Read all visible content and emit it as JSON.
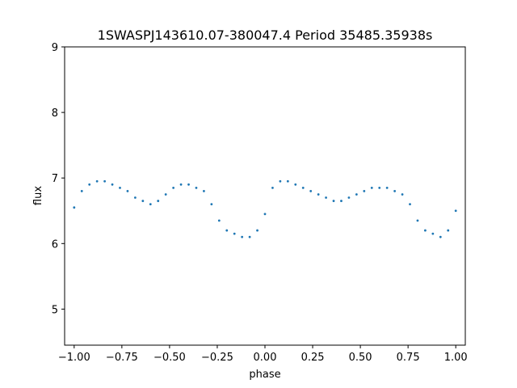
{
  "chart_data": {
    "type": "scatter",
    "title": "1SWASPJ143610.07-380047.4 Period 35485.35938s",
    "xlabel": "phase",
    "ylabel": "flux",
    "xlim": [
      -1.05,
      1.05
    ],
    "ylim": [
      4.45,
      9.0
    ],
    "xticks": [
      -1.0,
      -0.75,
      -0.5,
      -0.25,
      0.0,
      0.25,
      0.5,
      0.75,
      1.0
    ],
    "xtick_labels": [
      "−1.00",
      "−0.75",
      "−0.50",
      "−0.25",
      "0.00",
      "0.25",
      "0.50",
      "0.75",
      "1.00"
    ],
    "yticks": [
      5,
      6,
      7,
      8,
      9
    ],
    "ytick_labels": [
      "5",
      "6",
      "7",
      "8",
      "9"
    ],
    "grid": false,
    "legend": "none",
    "color": "#1f77b4",
    "series": [
      {
        "x": [
          -1.0,
          -0.96,
          -0.92,
          -0.88,
          -0.84,
          -0.8,
          -0.76,
          -0.72,
          -0.68,
          -0.64,
          -0.6,
          -0.56,
          -0.52,
          -0.48,
          -0.44,
          -0.4,
          -0.36,
          -0.32,
          -0.28,
          -0.24,
          -0.2,
          -0.16,
          -0.12,
          -0.08,
          -0.04,
          0.0,
          0.04,
          0.08,
          0.12,
          0.16,
          0.2,
          0.24,
          0.28,
          0.32,
          0.36,
          0.4,
          0.44,
          0.48,
          0.52,
          0.56,
          0.6,
          0.64,
          0.68,
          0.72,
          0.76,
          0.8,
          0.84,
          0.88,
          0.92,
          0.96,
          1.0
        ],
        "y": [
          6.55,
          6.8,
          6.9,
          6.95,
          6.95,
          6.9,
          6.85,
          6.8,
          6.7,
          6.65,
          6.6,
          6.65,
          6.75,
          6.85,
          6.9,
          6.9,
          6.85,
          6.8,
          6.6,
          6.35,
          6.2,
          6.15,
          6.1,
          6.1,
          6.2,
          6.45,
          6.85,
          6.95,
          6.95,
          6.9,
          6.85,
          6.8,
          6.75,
          6.7,
          6.65,
          6.65,
          6.7,
          6.75,
          6.8,
          6.85,
          6.85,
          6.85,
          6.8,
          6.75,
          6.6,
          6.35,
          6.2,
          6.15,
          6.1,
          6.2,
          6.5
        ]
      }
    ]
  }
}
